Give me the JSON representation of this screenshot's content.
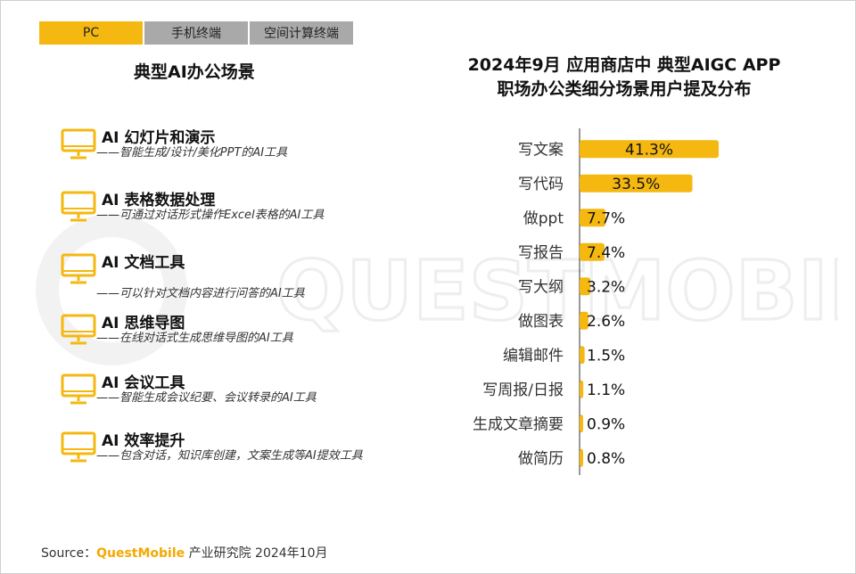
{
  "tabs": [
    {
      "label": "PC",
      "active": true
    },
    {
      "label": "手机终端",
      "active": false
    },
    {
      "label": "空间计算终端",
      "active": false
    }
  ],
  "left_title": "典型AI办公场景",
  "scenes": [
    {
      "name": "AI 幻灯片和演示",
      "desc": "——智能生成/设计/美化PPT的AI工具",
      "icon": "monitor-icon"
    },
    {
      "name": "AI 表格数据处理",
      "desc": "——可通过对话形式操作Excel表格的AI工具",
      "icon": "monitor-icon"
    },
    {
      "name": "AI 文档工具",
      "desc": "——可以针对文档内容进行问答的AI工具",
      "icon": "monitor-icon"
    },
    {
      "name": "AI 思维导图",
      "desc": "——在线对话式生成思维导图的AI工具",
      "icon": "monitor-icon"
    },
    {
      "name": "AI 会议工具",
      "desc": "——智能生成会议纪要、会议转录的AI工具",
      "icon": "monitor-icon"
    },
    {
      "name": "AI 效率提升",
      "desc": "——包含对话，知识库创建，文案生成等AI提效工具",
      "icon": "monitor-icon"
    }
  ],
  "chart_data": {
    "type": "bar",
    "orientation": "horizontal",
    "title": "2024年9月 应用商店中 典型AIGC APP",
    "subtitle": "职场办公类细分场景用户提及分布",
    "categories": [
      "写文案",
      "写代码",
      "做ppt",
      "写报告",
      "写大纲",
      "做图表",
      "编辑邮件",
      "写周报/日报",
      "生成文章摘要",
      "做简历"
    ],
    "values": [
      41.3,
      33.5,
      7.7,
      7.4,
      3.2,
      2.6,
      1.5,
      1.1,
      0.9,
      0.8
    ],
    "value_labels": [
      "41.3%",
      "33.5%",
      "7.7%",
      "7.4%",
      "3.2%",
      "2.6%",
      "1.5%",
      "1.1%",
      "0.9%",
      "0.8%"
    ],
    "xlim": [
      0,
      45
    ],
    "grid": false,
    "legend": "none",
    "bar_color": "#f5b811"
  },
  "watermark": "QUESTMOBILE",
  "source": {
    "prefix": "Source：",
    "brand": "QuestMobile",
    "suffix": " 产业研究院 2024年10月"
  }
}
